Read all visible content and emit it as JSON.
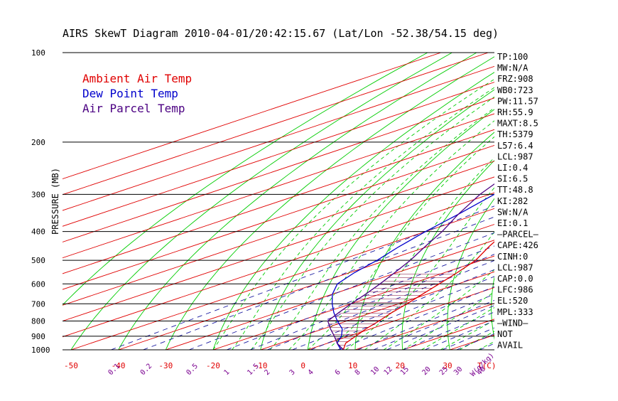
{
  "chart_data": {
    "type": "line",
    "title": "AIRS SkewT Diagram 2010-04-01/20:42:15.67 (Lat/Lon -52.38/54.15 deg)",
    "ylabel": "PRESSURE (MB)",
    "xlabel_bottom": "T(C)",
    "xlabel_mixing": "W(g/kg)",
    "y_scale": "log",
    "ylim": [
      1000,
      100
    ],
    "xlim_bottom": [
      -50,
      40
    ],
    "pressure_ticks": [
      100,
      200,
      300,
      400,
      500,
      600,
      700,
      800,
      900,
      1000
    ],
    "top_ticks": [
      -120,
      -110,
      -100,
      -90,
      -80,
      -70,
      -60,
      -50,
      -40
    ],
    "bottom_ticks": [
      -50,
      -40,
      -30,
      -20,
      -10,
      0,
      10,
      20,
      30
    ],
    "mixing_ratio_ticks": [
      "0.1",
      "0.2",
      "0.5",
      "1",
      "1.5",
      "2",
      "3",
      "4",
      "6",
      "8",
      "10",
      "12",
      "15",
      "20",
      "25",
      "30",
      "40"
    ],
    "legend": [
      {
        "label": "Ambient Air Temp",
        "color": "#e00000"
      },
      {
        "label": "Dew Point Temp",
        "color": "#0000cc"
      },
      {
        "label": "Air Parcel Temp",
        "color": "#4b0082"
      }
    ],
    "series": [
      {
        "name": "Ambient Air Temp",
        "color": "#e00000",
        "points": [
          [
            1000,
            7.5
          ],
          [
            950,
            3.8
          ],
          [
            900,
            1.5
          ],
          [
            850,
            -1.0
          ],
          [
            800,
            -3.2
          ],
          [
            750,
            -5.8
          ],
          [
            700,
            -8.2
          ],
          [
            650,
            -11.0
          ],
          [
            600,
            -14.0
          ],
          [
            550,
            -17.3
          ],
          [
            500,
            -21.2
          ],
          [
            450,
            -27.0
          ],
          [
            400,
            -33.0
          ],
          [
            350,
            -41.0
          ],
          [
            300,
            -50.0
          ],
          [
            250,
            -53.0
          ],
          [
            200,
            -52.0
          ],
          [
            175,
            -56.0
          ],
          [
            150,
            -59.0
          ],
          [
            125,
            -62.5
          ],
          [
            100,
            -66.0
          ]
        ]
      },
      {
        "name": "Dew Point Temp",
        "color": "#0000cc",
        "points": [
          [
            1000,
            7.0
          ],
          [
            950,
            2.0
          ],
          [
            900,
            -1.5
          ],
          [
            850,
            -6.0
          ],
          [
            800,
            -12.0
          ],
          [
            750,
            -18.0
          ],
          [
            700,
            -24.0
          ],
          [
            650,
            -30.0
          ],
          [
            600,
            -35.5
          ],
          [
            550,
            -39.0
          ],
          [
            500,
            -42.0
          ],
          [
            450,
            -46.0
          ],
          [
            400,
            -50.0
          ],
          [
            350,
            -54.0
          ],
          [
            300,
            -59.0
          ],
          [
            250,
            -66.0
          ],
          [
            200,
            -73.0
          ],
          [
            175,
            -79.0
          ],
          [
            150,
            -84.0
          ],
          [
            125,
            -92.0
          ],
          [
            100,
            -99.0
          ]
        ]
      },
      {
        "name": "Air Parcel Temp",
        "color": "#4b0082",
        "points": [
          [
            1000,
            7.5
          ],
          [
            950,
            2.0
          ],
          [
            900,
            -3.0
          ],
          [
            850,
            -8.5
          ],
          [
            800,
            -14.0
          ],
          [
            750,
            -17.0
          ],
          [
            700,
            -20.0
          ],
          [
            650,
            -23.0
          ],
          [
            600,
            -26.5
          ],
          [
            550,
            -30.5
          ],
          [
            500,
            -35.0
          ],
          [
            450,
            -40.5
          ],
          [
            400,
            -46.5
          ],
          [
            350,
            -54.0
          ],
          [
            300,
            -62.0
          ],
          [
            250,
            -70.0
          ],
          [
            200,
            -79.0
          ],
          [
            175,
            -85.0
          ],
          [
            150,
            -92.0
          ],
          [
            125,
            -100.0
          ],
          [
            100,
            -110.0
          ]
        ]
      }
    ],
    "stats": [
      "TP:100",
      "MW:N/A",
      "FRZ:908",
      "WB0:723",
      "PW:11.57",
      "RH:55.9",
      "MAXT:8.5",
      "TH:5379",
      "L57:6.4",
      "LCL:987",
      "LI:0.4",
      "SI:6.5",
      "TT:48.8",
      "KI:282",
      "SW:N/A",
      "EI:0.1",
      "—PARCEL—",
      "CAPE:426",
      "CINH:0",
      "LCL:987",
      "CAP:0.0",
      "LFC:986",
      "EL:520",
      "MPL:333",
      "—WIND—",
      "NOT",
      "AVAIL"
    ],
    "background_lines": {
      "isotherm_color": "#e00000",
      "dry_adiabat_color": "#00cc00",
      "moist_adiabat_color": "#00cc00",
      "mixing_ratio_color": "#1a1aa0"
    }
  }
}
